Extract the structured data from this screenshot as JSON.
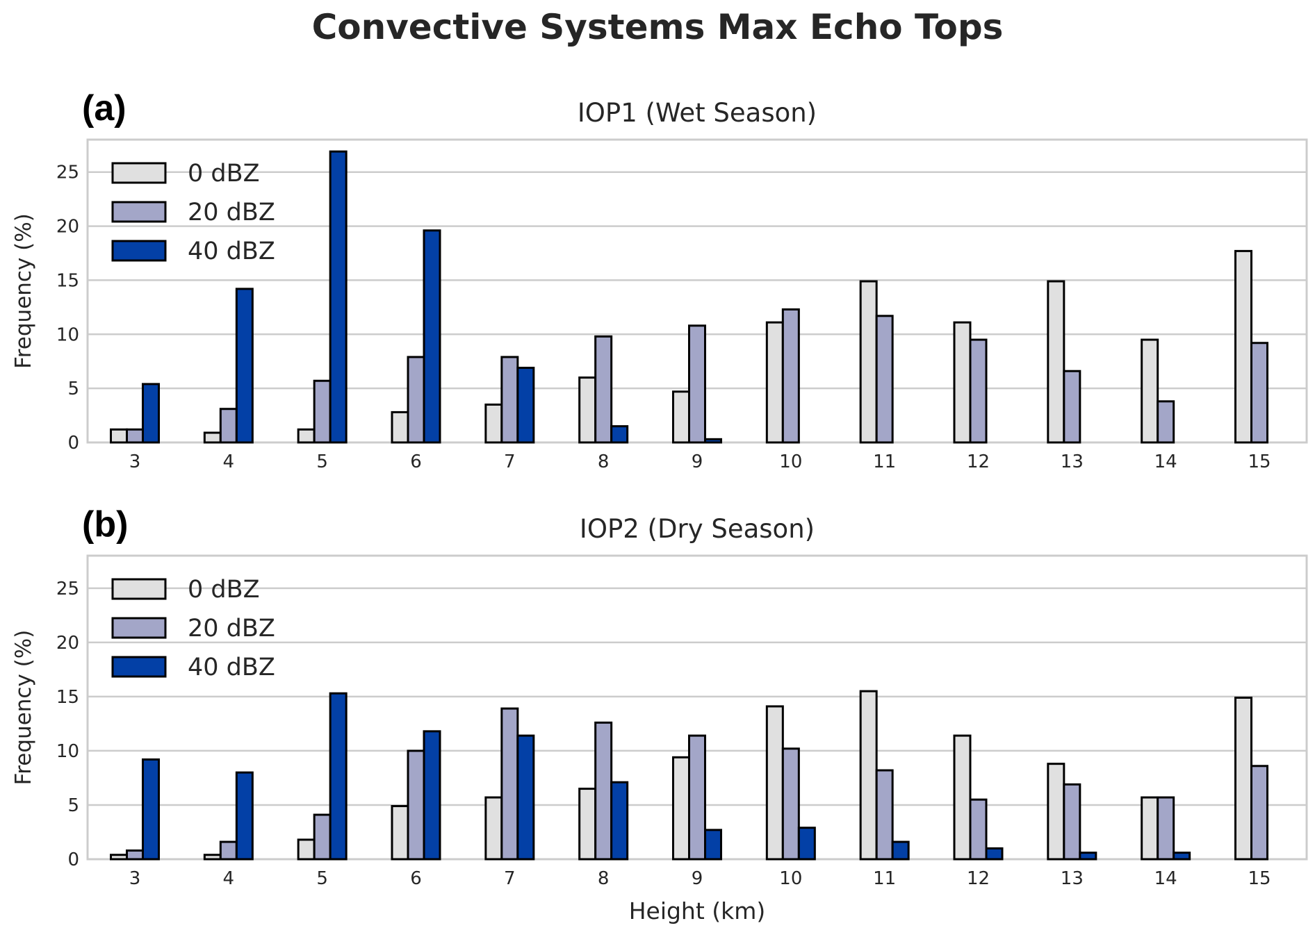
{
  "chart_data": {
    "title": "Convective Systems Max Echo Tops",
    "xlabel": "Height (km)",
    "colors": {
      "0 dBZ": "#e0e0e0",
      "20 dBZ": "#a3a6c8",
      "40 dBZ": "#0340a6"
    },
    "panels": [
      {
        "type": "bar",
        "letter": "(a)",
        "title": "IOP1 (Wet Season)",
        "ylabel": "Frequency (%)",
        "ylim": [
          0,
          28
        ],
        "yticks": [
          0,
          5,
          10,
          15,
          20,
          25
        ],
        "grid": true,
        "legend": "top-left",
        "categories": [
          "3",
          "4",
          "5",
          "6",
          "7",
          "8",
          "9",
          "10",
          "11",
          "12",
          "13",
          "14",
          "15"
        ],
        "series": [
          {
            "name": "0 dBZ",
            "values": [
              1.2,
              0.9,
              1.2,
              2.8,
              3.5,
              6.0,
              4.7,
              11.1,
              14.9,
              11.1,
              14.9,
              9.5,
              17.7
            ]
          },
          {
            "name": "20 dBZ",
            "values": [
              1.2,
              3.1,
              5.7,
              7.9,
              7.9,
              9.8,
              10.8,
              12.3,
              11.7,
              9.5,
              6.6,
              3.8,
              9.2
            ]
          },
          {
            "name": "40 dBZ",
            "values": [
              5.4,
              14.2,
              26.9,
              19.6,
              6.9,
              1.5,
              0.3,
              0,
              0,
              0,
              0,
              0,
              0
            ]
          }
        ]
      },
      {
        "type": "bar",
        "letter": "(b)",
        "title": "IOP2 (Dry Season)",
        "ylabel": "Frequency (%)",
        "ylim": [
          0,
          28
        ],
        "yticks": [
          0,
          5,
          10,
          15,
          20,
          25
        ],
        "grid": true,
        "legend": "top-left",
        "categories": [
          "3",
          "4",
          "5",
          "6",
          "7",
          "8",
          "9",
          "10",
          "11",
          "12",
          "13",
          "14",
          "15"
        ],
        "series": [
          {
            "name": "0 dBZ",
            "values": [
              0.4,
              0.4,
              1.8,
              4.9,
              5.7,
              6.5,
              9.4,
              14.1,
              15.5,
              11.4,
              8.8,
              5.7,
              14.9
            ]
          },
          {
            "name": "20 dBZ",
            "values": [
              0.8,
              1.6,
              4.1,
              10.0,
              13.9,
              12.6,
              11.4,
              10.2,
              8.2,
              5.5,
              6.9,
              5.7,
              8.6
            ]
          },
          {
            "name": "40 dBZ",
            "values": [
              9.2,
              8.0,
              15.3,
              11.8,
              11.4,
              7.1,
              2.7,
              2.9,
              1.6,
              1.0,
              0.6,
              0.6,
              0
            ]
          }
        ]
      }
    ]
  }
}
